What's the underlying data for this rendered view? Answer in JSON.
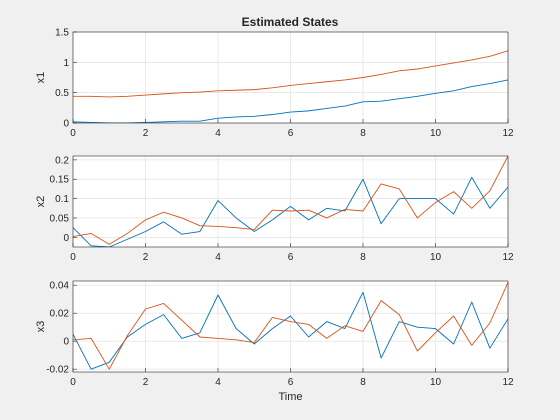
{
  "figure": {
    "background": "#f0f0f0"
  },
  "chart_data": [
    {
      "type": "line",
      "title": "Estimated States",
      "xlabel": "",
      "ylabel": "x1",
      "xlim": [
        0,
        12
      ],
      "ylim": [
        0,
        1.5
      ],
      "xticks": [
        0,
        2,
        4,
        6,
        8,
        10,
        12
      ],
      "yticks": [
        0,
        0.5,
        1,
        1.5
      ],
      "xtick_labels": [
        "0",
        "2",
        "4",
        "6",
        "8",
        "10",
        "12"
      ],
      "ytick_labels": [
        "0",
        "0.5",
        "1",
        "1.5"
      ],
      "grid": true,
      "x": [
        0,
        0.5,
        1,
        1.5,
        2,
        2.5,
        3,
        3.5,
        4,
        4.5,
        5,
        5.5,
        6,
        6.5,
        7,
        7.5,
        8,
        8.5,
        9,
        9.5,
        10,
        10.5,
        11,
        11.5,
        12
      ],
      "series": [
        {
          "color": "#0072BD",
          "values": [
            0.02,
            0.01,
            0.0,
            0.0,
            0.01,
            0.02,
            0.03,
            0.03,
            0.08,
            0.1,
            0.11,
            0.14,
            0.18,
            0.2,
            0.24,
            0.28,
            0.35,
            0.36,
            0.4,
            0.44,
            0.49,
            0.53,
            0.6,
            0.65,
            0.71
          ]
        },
        {
          "color": "#D95319",
          "values": [
            0.44,
            0.44,
            0.43,
            0.44,
            0.46,
            0.48,
            0.5,
            0.51,
            0.53,
            0.54,
            0.55,
            0.58,
            0.62,
            0.65,
            0.68,
            0.71,
            0.75,
            0.8,
            0.86,
            0.89,
            0.94,
            0.99,
            1.04,
            1.1,
            1.19
          ]
        }
      ]
    },
    {
      "type": "line",
      "title": "",
      "xlabel": "",
      "ylabel": "x2",
      "xlim": [
        0,
        12
      ],
      "ylim": [
        -0.025,
        0.21
      ],
      "xticks": [
        0,
        2,
        4,
        6,
        8,
        10,
        12
      ],
      "yticks": [
        0,
        0.05,
        0.1,
        0.15,
        0.2
      ],
      "xtick_labels": [
        "0",
        "2",
        "4",
        "6",
        "8",
        "10",
        "12"
      ],
      "ytick_labels": [
        "0",
        "0.05",
        "0.1",
        "0.15",
        "0.2"
      ],
      "grid": true,
      "x": [
        0,
        0.5,
        1,
        1.5,
        2,
        2.5,
        3,
        3.5,
        4,
        4.5,
        5,
        5.5,
        6,
        6.5,
        7,
        7.5,
        8,
        8.5,
        9,
        9.5,
        10,
        10.5,
        11,
        11.5,
        12
      ],
      "series": [
        {
          "color": "#0072BD",
          "values": [
            0.025,
            -0.022,
            -0.025,
            -0.005,
            0.015,
            0.04,
            0.008,
            0.015,
            0.095,
            0.05,
            0.015,
            0.045,
            0.08,
            0.045,
            0.075,
            0.068,
            0.15,
            0.035,
            0.1,
            0.1,
            0.1,
            0.06,
            0.155,
            0.075,
            0.13
          ]
        },
        {
          "color": "#D95319",
          "values": [
            0.002,
            0.01,
            -0.018,
            0.01,
            0.045,
            0.065,
            0.05,
            0.03,
            0.028,
            0.025,
            0.02,
            0.07,
            0.068,
            0.07,
            0.05,
            0.072,
            0.068,
            0.138,
            0.125,
            0.05,
            0.09,
            0.118,
            0.075,
            0.12,
            0.21
          ]
        }
      ]
    },
    {
      "type": "line",
      "title": "",
      "xlabel": "Time",
      "ylabel": "x3",
      "xlim": [
        0,
        12
      ],
      "ylim": [
        -0.022,
        0.043
      ],
      "xticks": [
        0,
        2,
        4,
        6,
        8,
        10,
        12
      ],
      "yticks": [
        -0.02,
        0,
        0.02,
        0.04
      ],
      "xtick_labels": [
        "0",
        "2",
        "4",
        "6",
        "8",
        "10",
        "12"
      ],
      "ytick_labels": [
        "-0.02",
        "0",
        "0.02",
        "0.04"
      ],
      "grid": true,
      "x": [
        0,
        0.5,
        1,
        1.5,
        2,
        2.5,
        3,
        3.5,
        4,
        4.5,
        5,
        5.5,
        6,
        6.5,
        7,
        7.5,
        8,
        8.5,
        9,
        9.5,
        10,
        10.5,
        11,
        11.5,
        12
      ],
      "series": [
        {
          "color": "#0072BD",
          "values": [
            0.005,
            -0.02,
            -0.015,
            0.003,
            0.012,
            0.019,
            0.002,
            0.006,
            0.033,
            0.009,
            -0.002,
            0.009,
            0.018,
            0.003,
            0.014,
            0.009,
            0.035,
            -0.012,
            0.014,
            0.01,
            0.009,
            -0.002,
            0.028,
            -0.005,
            0.016
          ]
        },
        {
          "color": "#D95319",
          "values": [
            0.001,
            0.002,
            -0.02,
            0.004,
            0.023,
            0.027,
            0.015,
            0.003,
            0.002,
            0.001,
            -0.001,
            0.017,
            0.014,
            0.012,
            0.002,
            0.011,
            0.007,
            0.029,
            0.019,
            -0.007,
            0.006,
            0.018,
            -0.003,
            0.013,
            0.042
          ]
        }
      ]
    }
  ]
}
